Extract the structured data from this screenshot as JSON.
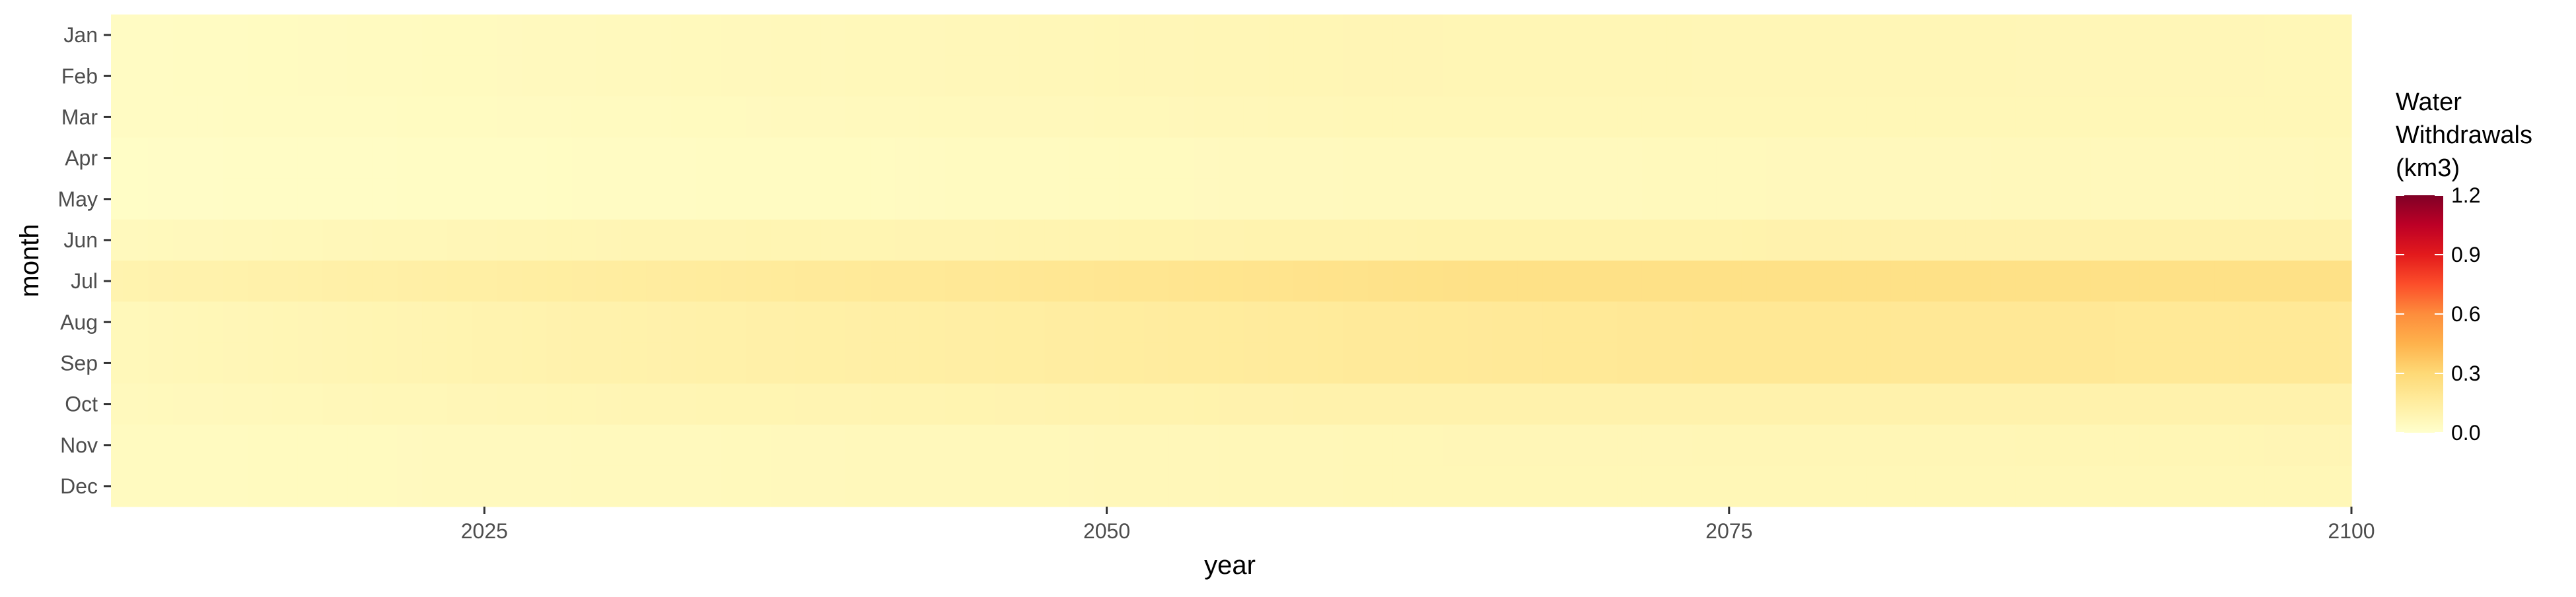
{
  "chart_data": {
    "type": "heatmap",
    "title": "",
    "xlabel": "year",
    "ylabel": "month",
    "xlim": [
      2010,
      2100
    ],
    "x_ticks": [
      "2025",
      "2050",
      "2075",
      "2100"
    ],
    "y_categories": [
      "Jan",
      "Feb",
      "Mar",
      "Apr",
      "May",
      "Jun",
      "Jul",
      "Aug",
      "Sep",
      "Oct",
      "Nov",
      "Dec"
    ],
    "legend": {
      "title_lines": [
        "Water",
        "Withdrawals",
        "(km3)"
      ],
      "ticks": [
        "1.2",
        "0.9",
        "0.6",
        "0.3",
        "0.0"
      ],
      "range": [
        0,
        1.2
      ],
      "placement": "right"
    },
    "color_scale": [
      "#FFFFCC",
      "#FFEDA0",
      "#FED976",
      "#FEB24C",
      "#FD8D3C",
      "#FC4E2A",
      "#E31A1C",
      "#BD0026",
      "#800026"
    ],
    "grid": false,
    "months": [
      {
        "name": "Jan",
        "keyframes": [
          [
            2010,
            0.03
          ],
          [
            2030,
            0.05
          ],
          [
            2060,
            0.08
          ],
          [
            2100,
            0.07
          ]
        ]
      },
      {
        "name": "Feb",
        "keyframes": [
          [
            2010,
            0.03
          ],
          [
            2030,
            0.05
          ],
          [
            2060,
            0.08
          ],
          [
            2100,
            0.07
          ]
        ]
      },
      {
        "name": "Mar",
        "keyframes": [
          [
            2010,
            0.03
          ],
          [
            2030,
            0.04
          ],
          [
            2060,
            0.07
          ],
          [
            2100,
            0.07
          ]
        ]
      },
      {
        "name": "Apr",
        "keyframes": [
          [
            2010,
            0.02
          ],
          [
            2030,
            0.03
          ],
          [
            2060,
            0.05
          ],
          [
            2100,
            0.06
          ]
        ]
      },
      {
        "name": "May",
        "keyframes": [
          [
            2010,
            0.02
          ],
          [
            2030,
            0.03
          ],
          [
            2060,
            0.05
          ],
          [
            2100,
            0.06
          ]
        ]
      },
      {
        "name": "Jun",
        "keyframes": [
          [
            2010,
            0.05
          ],
          [
            2030,
            0.08
          ],
          [
            2060,
            0.1
          ],
          [
            2100,
            0.11
          ]
        ]
      },
      {
        "name": "Jul",
        "keyframes": [
          [
            2010,
            0.1
          ],
          [
            2030,
            0.15
          ],
          [
            2050,
            0.2
          ],
          [
            2065,
            0.24
          ],
          [
            2085,
            0.24
          ],
          [
            2100,
            0.24
          ]
        ]
      },
      {
        "name": "Aug",
        "keyframes": [
          [
            2010,
            0.06
          ],
          [
            2030,
            0.11
          ],
          [
            2060,
            0.17
          ],
          [
            2075,
            0.19
          ],
          [
            2100,
            0.18
          ]
        ]
      },
      {
        "name": "Sep",
        "keyframes": [
          [
            2010,
            0.06
          ],
          [
            2030,
            0.11
          ],
          [
            2060,
            0.17
          ],
          [
            2075,
            0.19
          ],
          [
            2100,
            0.18
          ]
        ]
      },
      {
        "name": "Oct",
        "keyframes": [
          [
            2010,
            0.05
          ],
          [
            2030,
            0.08
          ],
          [
            2060,
            0.11
          ],
          [
            2100,
            0.11
          ]
        ]
      },
      {
        "name": "Nov",
        "keyframes": [
          [
            2010,
            0.04
          ],
          [
            2030,
            0.05
          ],
          [
            2060,
            0.07
          ],
          [
            2100,
            0.08
          ]
        ]
      },
      {
        "name": "Dec",
        "keyframes": [
          [
            2010,
            0.04
          ],
          [
            2030,
            0.05
          ],
          [
            2060,
            0.07
          ],
          [
            2100,
            0.07
          ]
        ]
      }
    ]
  }
}
